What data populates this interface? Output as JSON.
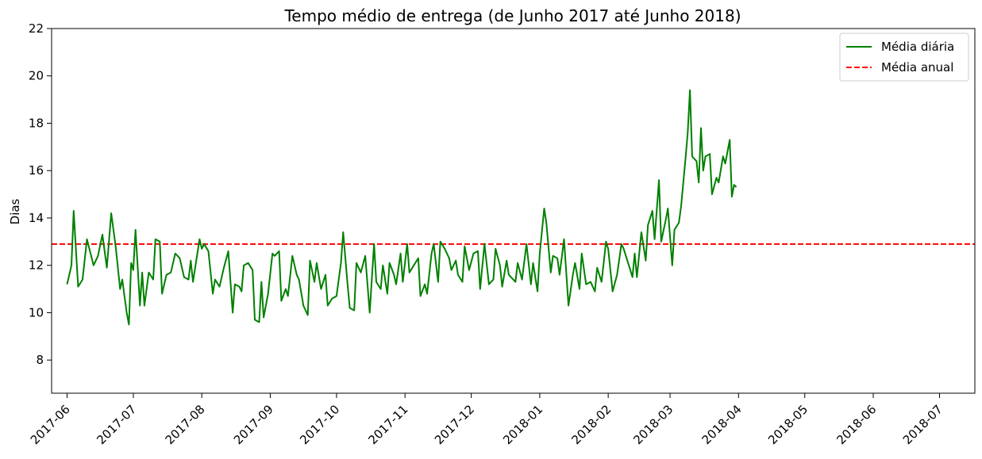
{
  "chart_data": {
    "type": "line",
    "title": "Tempo médio de entrega (de Junho 2017 até Junho 2018)",
    "xlabel": "",
    "ylabel": "Dias",
    "ylim": [
      6.6,
      22
    ],
    "xlim": [
      "2017-05-25",
      "2018-07-17"
    ],
    "grid": false,
    "legend_position": "top-right",
    "x_tick_labels": [
      "2017-06",
      "2017-07",
      "2017-08",
      "2017-09",
      "2017-10",
      "2017-11",
      "2017-12",
      "2018-01",
      "2018-02",
      "2018-03",
      "2018-04",
      "2018-05",
      "2018-06",
      "2018-07"
    ],
    "y_ticks": [
      8,
      10,
      12,
      14,
      16,
      18,
      20,
      22
    ],
    "reference_lines": [
      {
        "name": "Média anual",
        "y": 12.9,
        "color": "#ff0000",
        "style": "dashed"
      }
    ],
    "series": [
      {
        "name": "Média diária",
        "color": "#008000",
        "points": [
          [
            "2017-06-01",
            11.2
          ],
          [
            "2017-06-03",
            12.0
          ],
          [
            "2017-06-04",
            14.3
          ],
          [
            "2017-06-06",
            11.1
          ],
          [
            "2017-06-08",
            11.4
          ],
          [
            "2017-06-10",
            13.1
          ],
          [
            "2017-06-13",
            12.0
          ],
          [
            "2017-06-15",
            12.4
          ],
          [
            "2017-06-17",
            13.3
          ],
          [
            "2017-06-19",
            11.9
          ],
          [
            "2017-06-21",
            14.2
          ],
          [
            "2017-06-23",
            12.8
          ],
          [
            "2017-06-25",
            11.0
          ],
          [
            "2017-06-26",
            11.4
          ],
          [
            "2017-06-28",
            10.0
          ],
          [
            "2017-06-29",
            9.5
          ],
          [
            "2017-06-30",
            12.1
          ],
          [
            "2017-07-01",
            11.8
          ],
          [
            "2017-07-02",
            13.5
          ],
          [
            "2017-07-04",
            10.3
          ],
          [
            "2017-07-05",
            11.7
          ],
          [
            "2017-07-06",
            10.3
          ],
          [
            "2017-07-08",
            11.7
          ],
          [
            "2017-07-10",
            11.4
          ],
          [
            "2017-07-11",
            13.1
          ],
          [
            "2017-07-13",
            13.0
          ],
          [
            "2017-07-14",
            10.8
          ],
          [
            "2017-07-16",
            11.6
          ],
          [
            "2017-07-18",
            11.7
          ],
          [
            "2017-07-20",
            12.5
          ],
          [
            "2017-07-22",
            12.3
          ],
          [
            "2017-07-24",
            11.5
          ],
          [
            "2017-07-26",
            11.4
          ],
          [
            "2017-07-27",
            12.2
          ],
          [
            "2017-07-28",
            11.3
          ],
          [
            "2017-07-31",
            13.1
          ],
          [
            "2017-08-01",
            12.7
          ],
          [
            "2017-08-02",
            12.9
          ],
          [
            "2017-08-04",
            12.6
          ],
          [
            "2017-08-06",
            10.8
          ],
          [
            "2017-08-07",
            11.4
          ],
          [
            "2017-08-09",
            11.1
          ],
          [
            "2017-08-11",
            11.9
          ],
          [
            "2017-08-13",
            12.6
          ],
          [
            "2017-08-15",
            10.0
          ],
          [
            "2017-08-16",
            11.2
          ],
          [
            "2017-08-18",
            11.1
          ],
          [
            "2017-08-19",
            10.9
          ],
          [
            "2017-08-20",
            12.0
          ],
          [
            "2017-08-22",
            12.1
          ],
          [
            "2017-08-24",
            11.8
          ],
          [
            "2017-08-25",
            9.7
          ],
          [
            "2017-08-27",
            9.6
          ],
          [
            "2017-08-28",
            11.3
          ],
          [
            "2017-08-29",
            9.8
          ],
          [
            "2017-08-31",
            10.8
          ],
          [
            "2017-09-02",
            12.5
          ],
          [
            "2017-09-03",
            12.4
          ],
          [
            "2017-09-05",
            12.6
          ],
          [
            "2017-09-06",
            10.5
          ],
          [
            "2017-09-08",
            11.0
          ],
          [
            "2017-09-09",
            10.7
          ],
          [
            "2017-09-11",
            12.4
          ],
          [
            "2017-09-13",
            11.6
          ],
          [
            "2017-09-14",
            11.4
          ],
          [
            "2017-09-16",
            10.3
          ],
          [
            "2017-09-18",
            9.9
          ],
          [
            "2017-09-19",
            12.2
          ],
          [
            "2017-09-21",
            11.3
          ],
          [
            "2017-09-22",
            12.1
          ],
          [
            "2017-09-24",
            11.0
          ],
          [
            "2017-09-26",
            11.6
          ],
          [
            "2017-09-27",
            10.3
          ],
          [
            "2017-09-29",
            10.6
          ],
          [
            "2017-10-01",
            10.7
          ],
          [
            "2017-10-03",
            12.1
          ],
          [
            "2017-10-04",
            13.4
          ],
          [
            "2017-10-06",
            11.2
          ],
          [
            "2017-10-07",
            10.2
          ],
          [
            "2017-10-09",
            10.1
          ],
          [
            "2017-10-10",
            12.1
          ],
          [
            "2017-10-12",
            11.7
          ],
          [
            "2017-10-14",
            12.4
          ],
          [
            "2017-10-16",
            10.0
          ],
          [
            "2017-10-18",
            12.9
          ],
          [
            "2017-10-19",
            11.3
          ],
          [
            "2017-10-21",
            11.0
          ],
          [
            "2017-10-22",
            12.0
          ],
          [
            "2017-10-24",
            10.8
          ],
          [
            "2017-10-25",
            12.1
          ],
          [
            "2017-10-27",
            11.6
          ],
          [
            "2017-10-28",
            11.2
          ],
          [
            "2017-10-30",
            12.5
          ],
          [
            "2017-10-31",
            11.3
          ],
          [
            "2017-11-02",
            12.9
          ],
          [
            "2017-11-03",
            11.7
          ],
          [
            "2017-11-05",
            12.0
          ],
          [
            "2017-11-07",
            12.3
          ],
          [
            "2017-11-08",
            10.7
          ],
          [
            "2017-11-10",
            11.2
          ],
          [
            "2017-11-11",
            10.8
          ],
          [
            "2017-11-13",
            12.5
          ],
          [
            "2017-11-14",
            12.9
          ],
          [
            "2017-11-16",
            11.3
          ],
          [
            "2017-11-17",
            13.0
          ],
          [
            "2017-11-19",
            12.7
          ],
          [
            "2017-11-21",
            12.3
          ],
          [
            "2017-11-22",
            11.8
          ],
          [
            "2017-11-24",
            12.2
          ],
          [
            "2017-11-25",
            11.6
          ],
          [
            "2017-11-27",
            11.3
          ],
          [
            "2017-11-28",
            12.8
          ],
          [
            "2017-11-30",
            11.8
          ],
          [
            "2017-12-02",
            12.5
          ],
          [
            "2017-12-04",
            12.6
          ],
          [
            "2017-12-05",
            11.0
          ],
          [
            "2017-12-07",
            12.9
          ],
          [
            "2017-12-09",
            11.2
          ],
          [
            "2017-12-11",
            11.4
          ],
          [
            "2017-12-12",
            12.7
          ],
          [
            "2017-12-14",
            12.0
          ],
          [
            "2017-12-15",
            11.1
          ],
          [
            "2017-12-17",
            12.2
          ],
          [
            "2017-12-18",
            11.6
          ],
          [
            "2017-12-19",
            11.5
          ],
          [
            "2017-12-21",
            11.3
          ],
          [
            "2017-12-22",
            12.1
          ],
          [
            "2017-12-24",
            11.4
          ],
          [
            "2017-12-26",
            12.9
          ],
          [
            "2017-12-28",
            11.2
          ],
          [
            "2017-12-29",
            12.1
          ],
          [
            "2017-12-31",
            10.9
          ],
          [
            "2018-01-01",
            12.5
          ],
          [
            "2018-01-03",
            14.4
          ],
          [
            "2018-01-04",
            13.8
          ],
          [
            "2018-01-06",
            11.7
          ],
          [
            "2018-01-07",
            12.4
          ],
          [
            "2018-01-09",
            12.3
          ],
          [
            "2018-01-10",
            11.6
          ],
          [
            "2018-01-12",
            13.1
          ],
          [
            "2018-01-14",
            10.3
          ],
          [
            "2018-01-16",
            11.6
          ],
          [
            "2018-01-17",
            12.1
          ],
          [
            "2018-01-19",
            11.0
          ],
          [
            "2018-01-20",
            12.5
          ],
          [
            "2018-01-22",
            11.2
          ],
          [
            "2018-01-24",
            11.3
          ],
          [
            "2018-01-26",
            10.9
          ],
          [
            "2018-01-27",
            11.9
          ],
          [
            "2018-01-29",
            11.3
          ],
          [
            "2018-01-31",
            13.0
          ],
          [
            "2018-02-01",
            12.7
          ],
          [
            "2018-02-03",
            10.9
          ],
          [
            "2018-02-05",
            11.6
          ],
          [
            "2018-02-07",
            12.9
          ],
          [
            "2018-02-08",
            12.7
          ],
          [
            "2018-02-10",
            12.1
          ],
          [
            "2018-02-12",
            11.5
          ],
          [
            "2018-02-13",
            12.5
          ],
          [
            "2018-02-14",
            11.5
          ],
          [
            "2018-02-16",
            13.4
          ],
          [
            "2018-02-18",
            12.2
          ],
          [
            "2018-02-19",
            13.7
          ],
          [
            "2018-02-21",
            14.3
          ],
          [
            "2018-02-22",
            13.1
          ],
          [
            "2018-02-24",
            15.6
          ],
          [
            "2018-02-25",
            13.0
          ],
          [
            "2018-02-27",
            13.9
          ],
          [
            "2018-02-28",
            14.4
          ],
          [
            "2018-03-02",
            12.0
          ],
          [
            "2018-03-03",
            13.5
          ],
          [
            "2018-03-05",
            13.8
          ],
          [
            "2018-03-06",
            14.5
          ],
          [
            "2018-03-08",
            16.5
          ],
          [
            "2018-03-09",
            17.6
          ],
          [
            "2018-03-10",
            19.4
          ],
          [
            "2018-03-11",
            16.6
          ],
          [
            "2018-03-13",
            16.4
          ],
          [
            "2018-03-14",
            15.5
          ],
          [
            "2018-03-15",
            17.8
          ],
          [
            "2018-03-16",
            16.0
          ],
          [
            "2018-03-17",
            16.6
          ],
          [
            "2018-03-19",
            16.7
          ],
          [
            "2018-03-20",
            15.0
          ],
          [
            "2018-03-22",
            15.7
          ],
          [
            "2018-03-23",
            15.5
          ],
          [
            "2018-03-25",
            16.6
          ],
          [
            "2018-03-26",
            16.3
          ],
          [
            "2018-03-28",
            17.3
          ],
          [
            "2018-03-29",
            14.9
          ],
          [
            "2018-03-30",
            15.4
          ],
          [
            "2018-03-31",
            15.3
          ]
        ]
      }
    ]
  }
}
